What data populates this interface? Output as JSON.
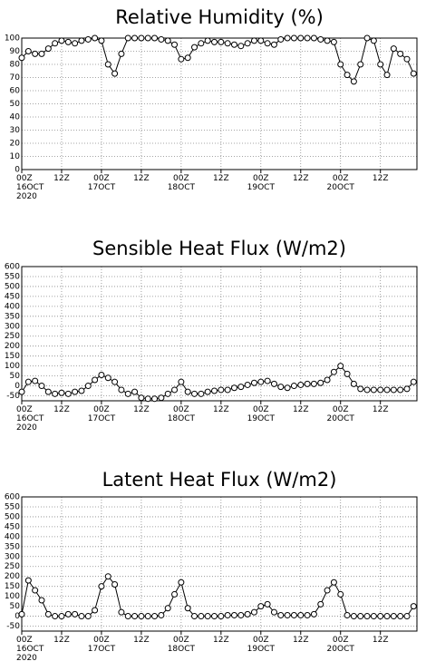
{
  "chart_data": [
    {
      "type": "line",
      "title": "Relative Humidity (%)",
      "x": [
        0,
        2,
        4,
        6,
        8,
        10,
        12,
        14,
        16,
        18,
        20,
        22,
        24,
        26,
        28,
        30,
        32,
        34,
        36,
        38,
        40,
        42,
        44,
        46,
        48,
        50,
        52,
        54,
        56,
        58,
        60,
        62,
        64,
        66,
        68,
        70,
        72,
        74,
        76,
        78,
        80,
        82,
        84,
        86,
        88,
        90,
        92,
        94,
        96,
        98,
        100,
        102,
        104,
        106,
        108,
        110,
        112,
        114,
        116,
        118
      ],
      "series": [
        {
          "name": "RH",
          "color": "#000000",
          "values": [
            85,
            90,
            88,
            88,
            92,
            96,
            98,
            97,
            96,
            98,
            99,
            100,
            98,
            80,
            73,
            88,
            100,
            100,
            100,
            100,
            100,
            99,
            98,
            95,
            84,
            85,
            93,
            96,
            98,
            97,
            97,
            96,
            95,
            94,
            96,
            98,
            98,
            96,
            95,
            99,
            100,
            100,
            100,
            100,
            100,
            99,
            98,
            97,
            80,
            72,
            67,
            80,
            100,
            98,
            80,
            72,
            92,
            88,
            84,
            73
          ]
        }
      ],
      "xlim": [
        0,
        119
      ],
      "xticks": [
        {
          "value": 0,
          "label": "00Z\n16OCT\n2020"
        },
        {
          "value": 12,
          "label": "12Z"
        },
        {
          "value": 24,
          "label": "00Z\n17OCT"
        },
        {
          "value": 36,
          "label": "12Z"
        },
        {
          "value": 48,
          "label": "00Z\n18OCT"
        },
        {
          "value": 60,
          "label": "12Z"
        },
        {
          "value": 72,
          "label": "00Z\n19OCT"
        },
        {
          "value": 84,
          "label": "12Z"
        },
        {
          "value": 96,
          "label": "00Z\n20OCT"
        },
        {
          "value": 108,
          "label": "12Z"
        }
      ],
      "ylim": [
        0,
        100
      ],
      "yticks": [
        0,
        10,
        20,
        30,
        40,
        50,
        60,
        70,
        80,
        90,
        100
      ],
      "grid": true
    },
    {
      "type": "line",
      "title": "Sensible Heat Flux (W/m2)",
      "x": [
        0,
        2,
        4,
        6,
        8,
        10,
        12,
        14,
        16,
        18,
        20,
        22,
        24,
        26,
        28,
        30,
        32,
        34,
        36,
        38,
        40,
        42,
        44,
        46,
        48,
        50,
        52,
        54,
        56,
        58,
        60,
        62,
        64,
        66,
        68,
        70,
        72,
        74,
        76,
        78,
        80,
        82,
        84,
        86,
        88,
        90,
        92,
        94,
        96,
        98,
        100,
        102,
        104,
        106,
        108,
        110,
        112,
        114,
        116,
        118
      ],
      "series": [
        {
          "name": "SH",
          "color": "#000000",
          "values": [
            -30,
            20,
            25,
            0,
            -30,
            -40,
            -35,
            -40,
            -30,
            -25,
            0,
            30,
            55,
            40,
            20,
            -20,
            -40,
            -30,
            -60,
            -65,
            -65,
            -60,
            -40,
            -20,
            20,
            -30,
            -40,
            -40,
            -30,
            -25,
            -20,
            -20,
            -10,
            -5,
            5,
            15,
            20,
            25,
            10,
            -5,
            -10,
            0,
            5,
            10,
            10,
            15,
            30,
            70,
            100,
            60,
            10,
            -15,
            -20,
            -20,
            -20,
            -20,
            -20,
            -20,
            -15,
            20
          ]
        }
      ],
      "xlim": [
        0,
        119
      ],
      "xticks": [
        {
          "value": 0,
          "label": "00Z\n16OCT\n2020"
        },
        {
          "value": 12,
          "label": "12Z"
        },
        {
          "value": 24,
          "label": "00Z\n17OCT"
        },
        {
          "value": 36,
          "label": "12Z"
        },
        {
          "value": 48,
          "label": "00Z\n18OCT"
        },
        {
          "value": 60,
          "label": "12Z"
        },
        {
          "value": 72,
          "label": "00Z\n19OCT"
        },
        {
          "value": 84,
          "label": "12Z"
        },
        {
          "value": 96,
          "label": "00Z\n20OCT"
        },
        {
          "value": 108,
          "label": "12Z"
        }
      ],
      "ylim": [
        -75,
        600
      ],
      "yticks": [
        -50,
        0,
        50,
        100,
        150,
        200,
        250,
        300,
        350,
        400,
        450,
        500,
        550,
        600
      ],
      "grid": true
    },
    {
      "type": "line",
      "title": "Latent Heat Flux (W/m2)",
      "x": [
        0,
        2,
        4,
        6,
        8,
        10,
        12,
        14,
        16,
        18,
        20,
        22,
        24,
        26,
        28,
        30,
        32,
        34,
        36,
        38,
        40,
        42,
        44,
        46,
        48,
        50,
        52,
        54,
        56,
        58,
        60,
        62,
        64,
        66,
        68,
        70,
        72,
        74,
        76,
        78,
        80,
        82,
        84,
        86,
        88,
        90,
        92,
        94,
        96,
        98,
        100,
        102,
        104,
        106,
        108,
        110,
        112,
        114,
        116,
        118
      ],
      "series": [
        {
          "name": "LH",
          "color": "#000000",
          "values": [
            10,
            180,
            130,
            80,
            10,
            0,
            0,
            10,
            10,
            0,
            0,
            30,
            150,
            200,
            160,
            20,
            0,
            0,
            0,
            0,
            0,
            5,
            40,
            110,
            170,
            40,
            0,
            0,
            0,
            0,
            0,
            5,
            5,
            5,
            10,
            20,
            50,
            60,
            20,
            5,
            5,
            5,
            5,
            5,
            10,
            60,
            130,
            170,
            110,
            5,
            0,
            0,
            0,
            0,
            0,
            0,
            0,
            0,
            0,
            50
          ]
        }
      ],
      "xlim": [
        0,
        119
      ],
      "xticks": [
        {
          "value": 0,
          "label": "00Z\n16OCT\n2020"
        },
        {
          "value": 12,
          "label": "12Z"
        },
        {
          "value": 24,
          "label": "00Z\n17OCT"
        },
        {
          "value": 36,
          "label": "12Z"
        },
        {
          "value": 48,
          "label": "00Z\n18OCT"
        },
        {
          "value": 60,
          "label": "12Z"
        },
        {
          "value": 72,
          "label": "00Z\n19OCT"
        },
        {
          "value": 84,
          "label": "12Z"
        },
        {
          "value": 96,
          "label": "00Z\n20OCT"
        },
        {
          "value": 108,
          "label": "12Z"
        }
      ],
      "ylim": [
        -75,
        600
      ],
      "yticks": [
        -50,
        0,
        50,
        100,
        150,
        200,
        250,
        300,
        350,
        400,
        450,
        500,
        550,
        600
      ],
      "grid": true
    }
  ]
}
